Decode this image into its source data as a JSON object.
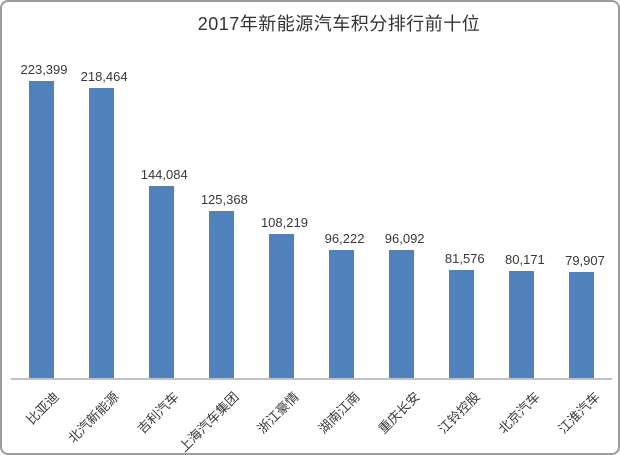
{
  "frame": {
    "border_color": "#9c9c9c",
    "background": "#ffffff"
  },
  "chart_data": {
    "type": "bar",
    "title": "2017年新能源汽车积分排行前十位",
    "categories": [
      "比亚迪",
      "北汽新能源",
      "吉利汽车",
      "上海汽车集团",
      "浙江豪情",
      "湖南江南",
      "重庆长安",
      "江铃控股",
      "北京汽车",
      "江淮汽车"
    ],
    "values": [
      223399,
      218464,
      144084,
      125368,
      108219,
      96222,
      96092,
      81576,
      80171,
      79907
    ],
    "value_labels": [
      "223,399",
      "218,464",
      "144,084",
      "125,368",
      "108,219",
      "96,222",
      "96,092",
      "81,576",
      "80,171",
      "79,907"
    ],
    "xlabel": "",
    "ylabel": "",
    "ylim": [
      0,
      223399
    ],
    "grid": false,
    "legend": "none",
    "value_label_position": "above",
    "category_rotation_deg": 45,
    "bar_color": "#4f81bd",
    "axis_line_color": "#c1c1c1",
    "label_color": "#383838",
    "title_color": "#333333"
  }
}
